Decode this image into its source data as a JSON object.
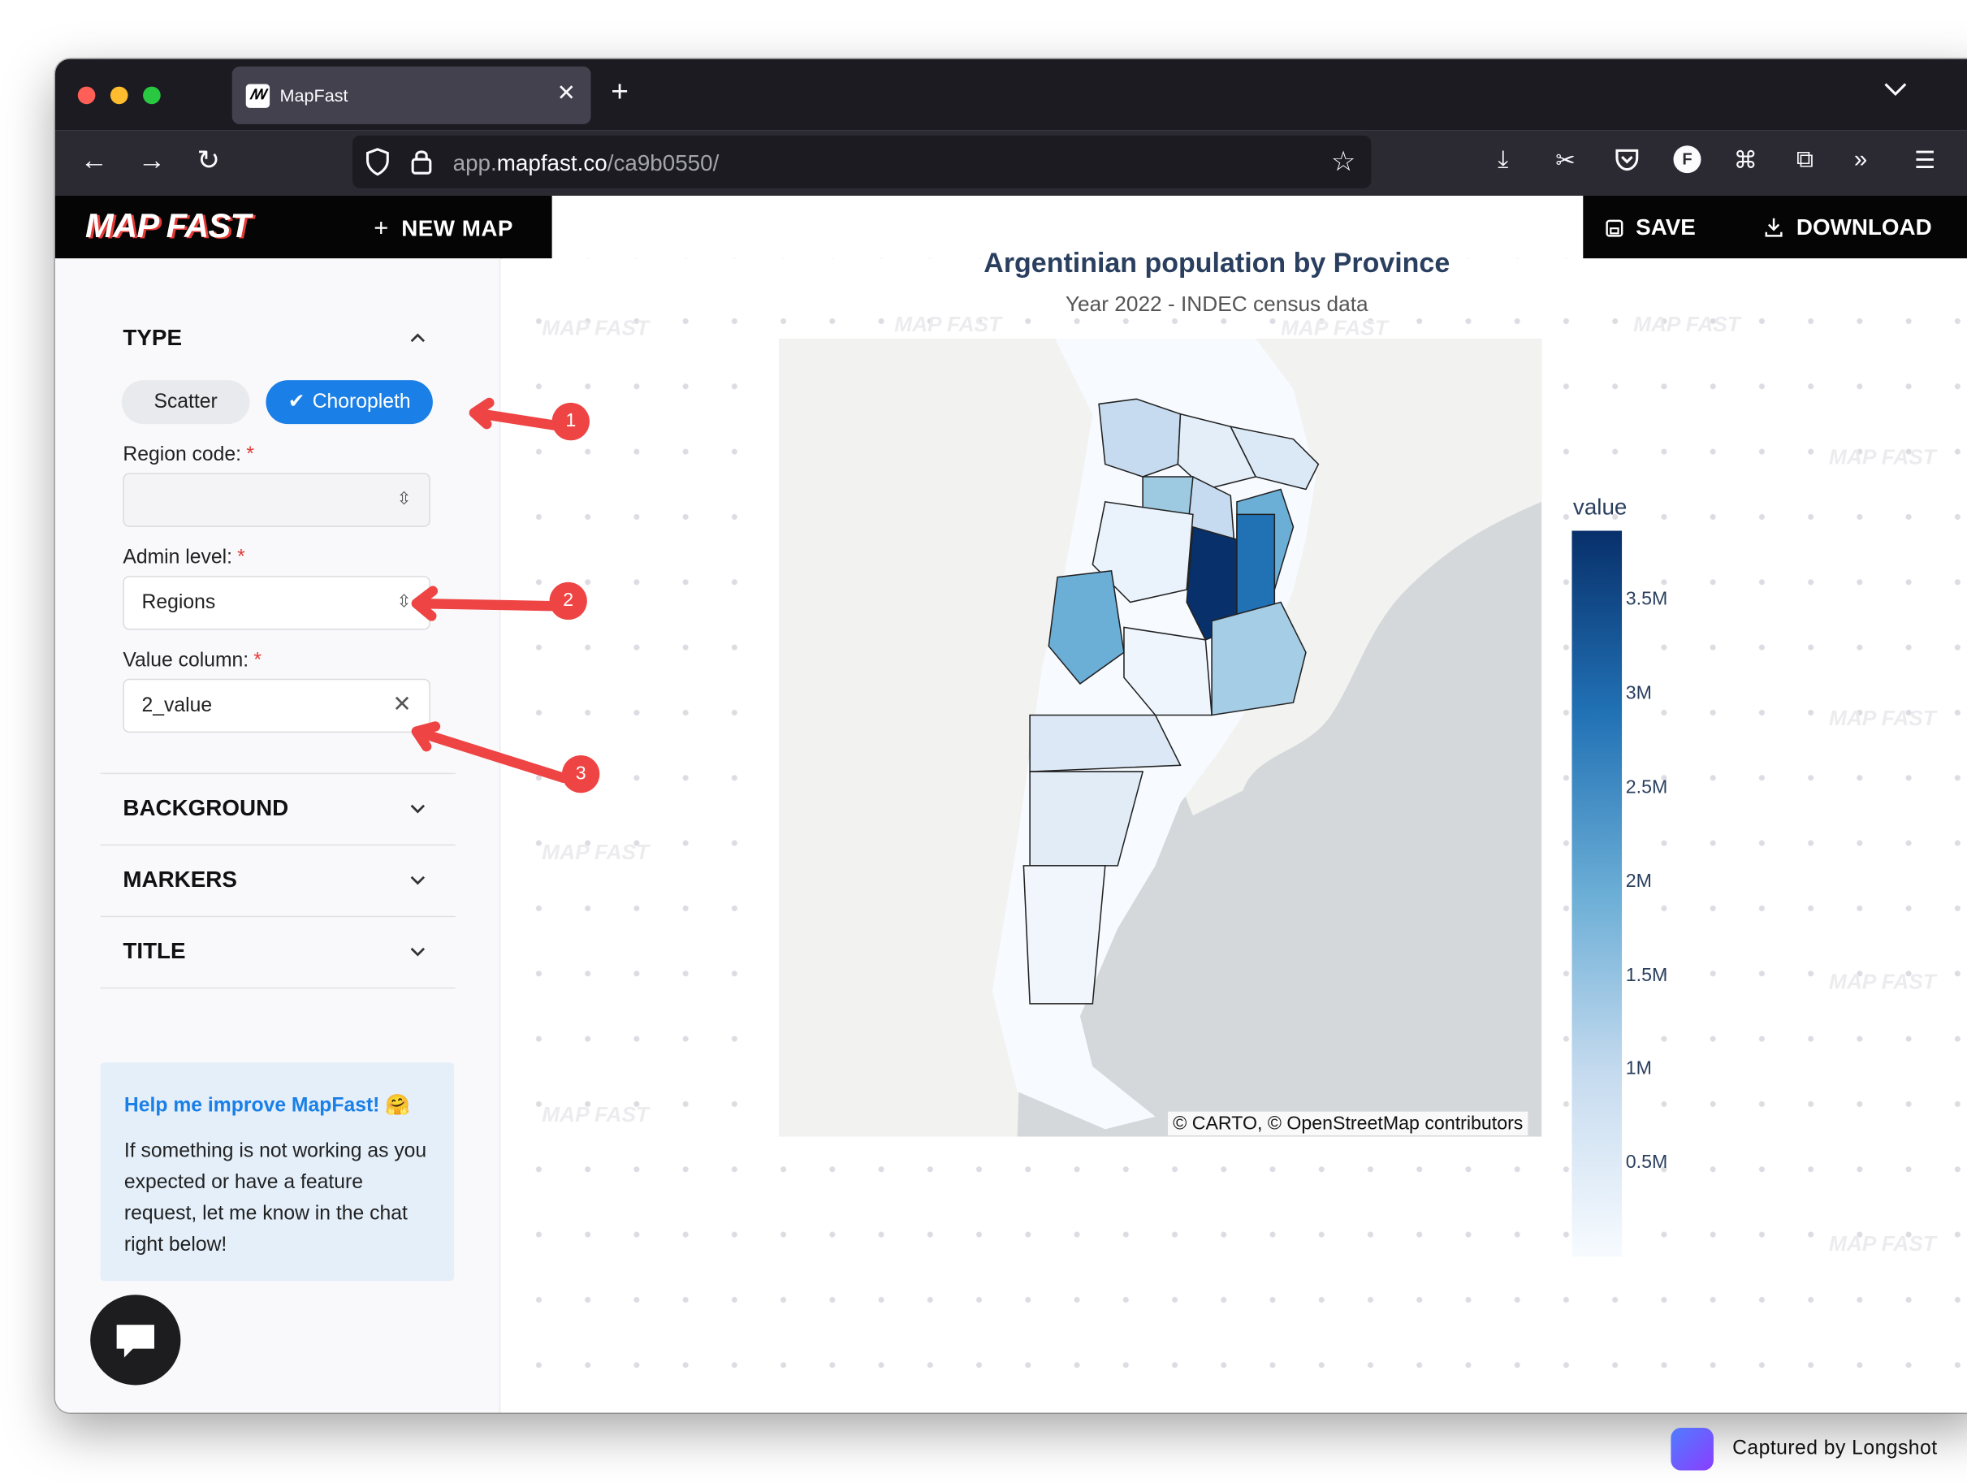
{
  "browser": {
    "tab_title": "MapFast",
    "url_host_prefix": "app.",
    "url_host": "mapfast.co",
    "url_path": "/ca9b0550/"
  },
  "app": {
    "logo": "MAP FAST",
    "new_map_label": "NEW MAP",
    "save_label": "SAVE",
    "download_label": "DOWNLOAD"
  },
  "sidebar": {
    "type_title": "TYPE",
    "scatter_label": "Scatter",
    "choropleth_label": "Choropleth",
    "region_code_label": "Region code:",
    "region_code_value": "",
    "admin_level_label": "Admin level:",
    "admin_level_value": "Regions",
    "value_column_label": "Value column:",
    "value_column_value": "2_value",
    "required_mark": "*",
    "background_title": "BACKGROUND",
    "markers_title": "MARKERS",
    "title_title": "TITLE",
    "help_title": "Help me improve MapFast! 🤗",
    "help_body": "If something is not working as you expected or have a feature request, let me know in the chat right below!"
  },
  "watermark_text": "MAP FAST",
  "chart_data": {
    "type": "choropleth",
    "title": "Argentinian population by Province",
    "subtitle": "Year 2022 - INDEC census data",
    "colorbar_title": "value",
    "colorbar_ticks": [
      "3.5M",
      "3M",
      "2.5M",
      "2M",
      "1.5M",
      "1M",
      "0.5M"
    ],
    "colorbar_tick_values": [
      3500000,
      3000000,
      2500000,
      2000000,
      1500000,
      1000000,
      500000
    ],
    "colorscale": [
      "#f7fbff",
      "#c6dbef",
      "#6baed6",
      "#2171b5",
      "#08306b"
    ],
    "attribution": "© CARTO, © OpenStreetMap contributors"
  },
  "annotations": [
    "1",
    "2",
    "3"
  ],
  "annotation_color": "#ee4444",
  "capture_label": "Captured by Longshot"
}
